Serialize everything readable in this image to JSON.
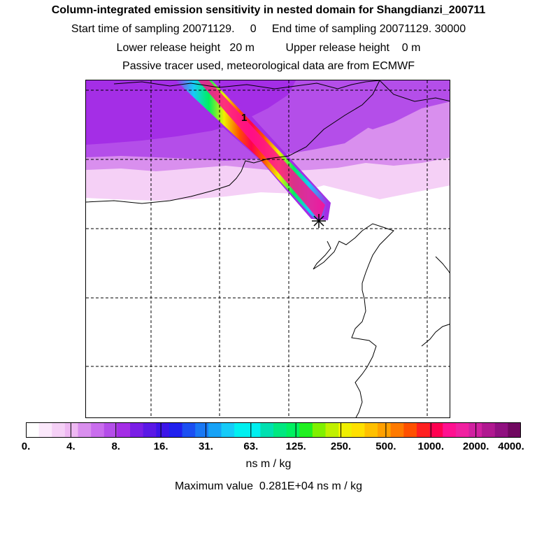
{
  "header": {
    "title": "Column-integrated emission sensitivity in nested domain for Shangdianzi_200711",
    "line2": "Start time of sampling 20071129.     0     End time of sampling 20071129. 30000",
    "line3": "Lower release height   20 m          Upper release height    0 m",
    "line4": "Passive tracer used, meteorological data are from ECMWF"
  },
  "map": {
    "contour_label": "1",
    "station_marker": "station-star"
  },
  "colorbar": {
    "tick_labels": [
      "0.",
      "4.",
      "8.",
      "16.",
      "31.",
      "63.",
      "125.",
      "250.",
      "500.",
      "1000.",
      "2000.",
      "4000."
    ],
    "colors": [
      "#ffffff",
      "#fbe8fb",
      "#f5d0f6",
      "#eeb8f2",
      "#d98fee",
      "#c96ded",
      "#b44ee9",
      "#a42ee6",
      "#7a1ee6",
      "#5a18e6",
      "#3c14e8",
      "#2020ee",
      "#1b4ff2",
      "#1a78f4",
      "#17a2f6",
      "#16cbf8",
      "#00f0f0",
      "#00f0f0",
      "#00e0b0",
      "#00e880",
      "#00f060",
      "#20f020",
      "#80f000",
      "#c0f000",
      "#f0f000",
      "#ffe000",
      "#ffc000",
      "#ffa000",
      "#ff7a00",
      "#ff5000",
      "#ff2020",
      "#ff0050",
      "#ff1090",
      "#f020a0",
      "#d020a0",
      "#b01890",
      "#901080",
      "#700860"
    ]
  },
  "units": "ns m / kg",
  "max_value": "Maximum value  0.281E+04 ns m / kg"
}
